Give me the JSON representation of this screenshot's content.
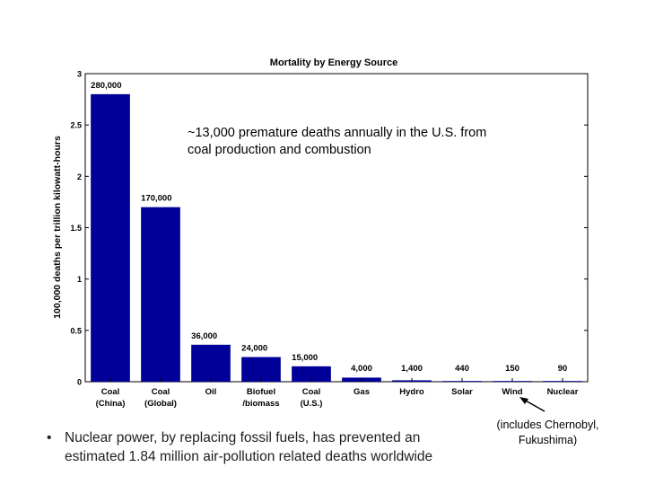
{
  "chart_data": {
    "type": "bar",
    "title": "Mortality by Energy Source",
    "ylabel": "100,000 deaths per trillion kilowatt-hours",
    "xlabel": "",
    "ylim": [
      0,
      3
    ],
    "yticks": [
      "0",
      "0.5",
      "1",
      "1.5",
      "2",
      "2.5",
      "3"
    ],
    "grid": false,
    "bar_color": "#000099",
    "categories": [
      [
        "Coal",
        "(China)"
      ],
      [
        "Coal",
        "(Global)"
      ],
      [
        "Oil"
      ],
      [
        "Biofuel",
        "/biomass"
      ],
      [
        "Coal",
        "(U.S.)"
      ],
      [
        "Gas"
      ],
      [
        "Hydro"
      ],
      [
        "Solar"
      ],
      [
        "Wind"
      ],
      [
        "Nuclear"
      ]
    ],
    "values": [
      2.8,
      1.7,
      0.36,
      0.24,
      0.15,
      0.04,
      0.014,
      0.0044,
      0.0015,
      0.0009
    ],
    "data_labels": [
      "280,000",
      "170,000",
      "36,000",
      "24,000",
      "15,000",
      "4,000",
      "1,400",
      "440",
      "150",
      "90"
    ]
  },
  "annotation": {
    "line1": "~13,000 premature deaths annually in the U.S. from",
    "line2": "coal production and combustion"
  },
  "bullet": {
    "symbol": "•",
    "line1": "Nuclear power, by replacing fossil fuels, has prevented an",
    "line2": "estimated 1.84 million air-pollution related deaths worldwide"
  },
  "footnote": {
    "line1": "(includes Chernobyl,",
    "line2": "Fukushima)"
  }
}
